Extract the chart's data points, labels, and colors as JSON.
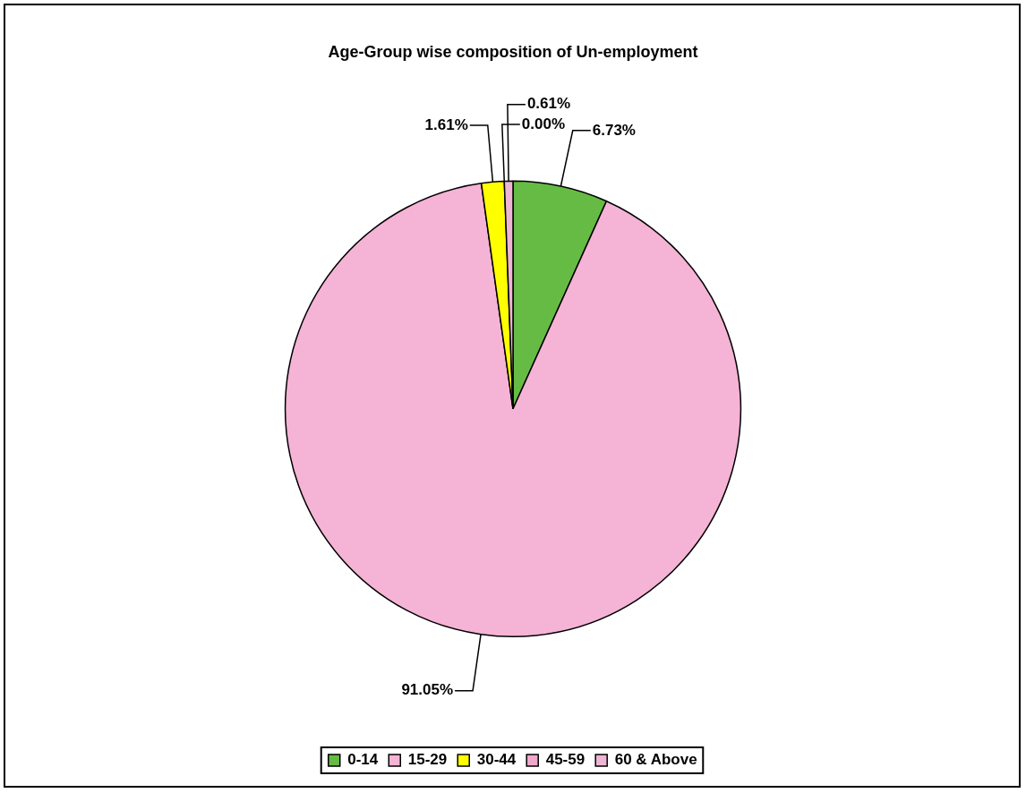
{
  "chart_data": {
    "type": "pie",
    "title": "Age-Group wise composition of Un-employment",
    "categories": [
      "0-14",
      "15-29",
      "30-44",
      "45-59",
      "60 & Above"
    ],
    "values": [
      6.73,
      91.05,
      1.61,
      0.0,
      0.61
    ],
    "value_labels": [
      "6.73%",
      "91.05%",
      "1.61%",
      "0.00%",
      "0.61%"
    ],
    "colors": [
      "#66bb44",
      "#f5b3d5",
      "#ffff00",
      "#f0a8cc",
      "#eeb6d4"
    ],
    "legend": "bottom"
  }
}
